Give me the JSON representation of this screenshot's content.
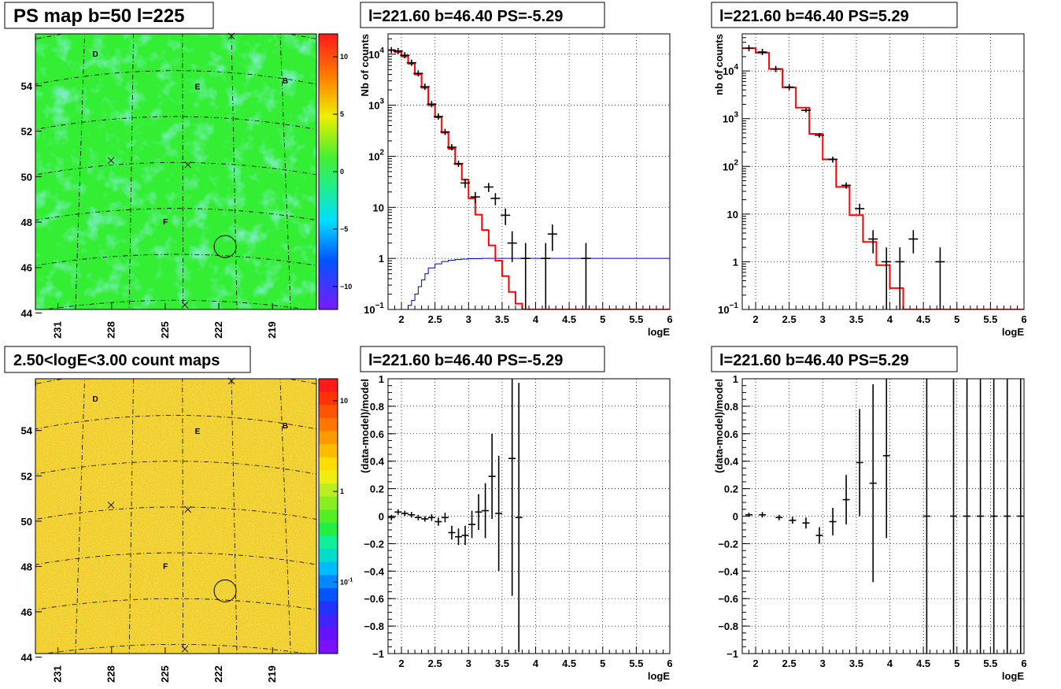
{
  "colors": {
    "data_points": "#000000",
    "model_histogram": "#ff0000",
    "efficiency_curve": "#0000cc",
    "grid": "#000000",
    "psmap_base": "#33ee33",
    "countmap_base": "#eedd33"
  },
  "chart_data": [
    {
      "id": "psmap",
      "type": "heatmap",
      "title": "PS map b=50 l=225",
      "colormap": "rainbow",
      "x_ticks": [
        "231",
        "228",
        "225",
        "222",
        "219"
      ],
      "y_ticks": [
        "54",
        "52",
        "50",
        "48",
        "46",
        "44"
      ],
      "x_axis_reversed": true,
      "colorbar": {
        "scale": "linear",
        "range": [
          -12,
          12
        ],
        "ticks": [
          "10",
          "5",
          "0",
          "−5",
          "−10"
        ]
      },
      "markers": [
        {
          "label": "D",
          "l": 229.3,
          "b": 54.8
        },
        {
          "label": "B",
          "l": 217.8,
          "b": 53.8
        },
        {
          "label": "E",
          "l": 223.1,
          "b": 53.2
        },
        {
          "label": "F",
          "l": 225.0,
          "b": 47.3
        }
      ],
      "crosses": [
        {
          "l": 221.0,
          "b": 55.6
        },
        {
          "l": 228.2,
          "b": 50.2
        },
        {
          "l": 223.7,
          "b": 49.9
        },
        {
          "l": 223.9,
          "b": 43.8
        }
      ],
      "circle": {
        "l": 221.6,
        "b": 46.4
      }
    },
    {
      "id": "spectrum_left",
      "type": "line",
      "title": "l=221.60 b=46.40 PS=-5.29",
      "xlabel": "logE",
      "ylabel": "Nb of counts",
      "xlim": [
        1.8,
        6
      ],
      "ylim": [
        0.1,
        25000
      ],
      "yscale": "log",
      "grid": true,
      "x_ticks": [
        "2",
        "2.5",
        "3",
        "3.5",
        "4",
        "4.5",
        "5",
        "5.5",
        "6"
      ],
      "y_ticks": [
        "10^4",
        "10^3",
        "10^2",
        "10",
        "1",
        "10^-1"
      ],
      "model_step": {
        "edges": [
          1.8,
          1.9,
          2.0,
          2.1,
          2.2,
          2.3,
          2.4,
          2.5,
          2.6,
          2.7,
          2.8,
          2.9,
          3.0,
          3.1,
          3.2,
          3.3,
          3.4,
          3.5,
          3.6,
          3.7,
          3.8,
          3.9,
          4.0,
          4.1,
          4.2,
          6.0
        ],
        "values": [
          12000,
          11000,
          9000,
          6500,
          4000,
          2200,
          1000,
          580,
          290,
          140,
          70,
          35,
          15,
          7.2,
          3.6,
          1.8,
          0.9,
          0.45,
          0.22,
          0.13,
          0.1,
          0.1,
          0.1,
          0.1,
          0.1
        ]
      },
      "efficiency_step": {
        "edges": [
          1.8,
          2.0,
          2.1,
          2.15,
          2.2,
          2.25,
          2.3,
          2.35,
          2.4,
          2.5,
          2.6,
          2.7,
          2.8,
          2.9,
          3.0,
          3.2,
          3.5,
          6.0
        ],
        "values": [
          0.1,
          0.1,
          0.12,
          0.15,
          0.2,
          0.28,
          0.38,
          0.5,
          0.65,
          0.78,
          0.87,
          0.92,
          0.95,
          0.97,
          0.99,
          1.0,
          1.0
        ]
      },
      "points": [
        {
          "x": 1.85,
          "y": 12000
        },
        {
          "x": 1.95,
          "y": 11500
        },
        {
          "x": 2.05,
          "y": 9500
        },
        {
          "x": 2.15,
          "y": 6800
        },
        {
          "x": 2.25,
          "y": 4200
        },
        {
          "x": 2.35,
          "y": 2300
        },
        {
          "x": 2.45,
          "y": 1050
        },
        {
          "x": 2.55,
          "y": 600
        },
        {
          "x": 2.65,
          "y": 300
        },
        {
          "x": 2.75,
          "y": 150
        },
        {
          "x": 2.85,
          "y": 72,
          "ylo": 62,
          "yhi": 82
        },
        {
          "x": 2.95,
          "y": 30,
          "ylo": 24,
          "yhi": 36
        },
        {
          "x": 3.1,
          "y": 16,
          "ylo": 12,
          "yhi": 20
        },
        {
          "x": 3.3,
          "y": 25,
          "ylo": 20,
          "yhi": 30
        },
        {
          "x": 3.4,
          "y": 15,
          "ylo": 11,
          "yhi": 19
        },
        {
          "x": 3.55,
          "y": 7,
          "ylo": 4.5,
          "yhi": 9.5
        },
        {
          "x": 3.65,
          "y": 2,
          "ylo": 0.85,
          "yhi": 3.4
        },
        {
          "x": 3.85,
          "y": 1,
          "ylo": 0.1,
          "yhi": 2.0
        },
        {
          "x": 4.15,
          "y": 1,
          "ylo": 0.1,
          "yhi": 2.0
        },
        {
          "x": 4.25,
          "y": 3,
          "ylo": 1.4,
          "yhi": 4.6
        },
        {
          "x": 4.75,
          "y": 1,
          "ylo": 0.1,
          "yhi": 2.0
        }
      ]
    },
    {
      "id": "spectrum_right",
      "type": "line",
      "title": "l=221.60 b=46.40 PS=5.29",
      "xlabel": "logE",
      "ylabel": "nb of counts",
      "xlim": [
        1.8,
        6
      ],
      "ylim": [
        0.1,
        60000
      ],
      "yscale": "log",
      "grid": true,
      "x_ticks": [
        "2",
        "2.5",
        "3",
        "3.5",
        "4",
        "4.5",
        "5",
        "5.5",
        "6"
      ],
      "y_ticks": [
        "10^4",
        "10^3",
        "10^2",
        "10",
        "1",
        "10^-1"
      ],
      "model_step": {
        "edges": [
          1.8,
          2.0,
          2.2,
          2.4,
          2.6,
          2.8,
          3.0,
          3.2,
          3.4,
          3.6,
          3.8,
          4.0,
          4.2,
          6.0
        ],
        "values": [
          30000,
          24000,
          11000,
          4500,
          1700,
          480,
          140,
          37,
          9.5,
          2.6,
          0.85,
          0.28,
          0.1
        ]
      },
      "points": [
        {
          "x": 1.9,
          "y": 30000
        },
        {
          "x": 2.1,
          "y": 25000
        },
        {
          "x": 2.3,
          "y": 11000
        },
        {
          "x": 2.5,
          "y": 4600
        },
        {
          "x": 2.75,
          "y": 1500,
          "ylo": 1350,
          "yhi": 1650
        },
        {
          "x": 2.95,
          "y": 450,
          "ylo": 400,
          "yhi": 500
        },
        {
          "x": 3.15,
          "y": 140,
          "ylo": 120,
          "yhi": 160
        },
        {
          "x": 3.35,
          "y": 40,
          "ylo": 34,
          "yhi": 46
        },
        {
          "x": 3.55,
          "y": 13,
          "ylo": 10,
          "yhi": 16.5
        },
        {
          "x": 3.75,
          "y": 3,
          "ylo": 1.5,
          "yhi": 4.6
        },
        {
          "x": 3.95,
          "y": 1,
          "ylo": 0.1,
          "yhi": 2.0
        },
        {
          "x": 4.15,
          "y": 1,
          "ylo": 0.1,
          "yhi": 2.0
        },
        {
          "x": 4.35,
          "y": 3,
          "ylo": 1.5,
          "yhi": 4.6
        },
        {
          "x": 4.75,
          "y": 1,
          "ylo": 0.1,
          "yhi": 2.0
        }
      ]
    },
    {
      "id": "countmap",
      "type": "heatmap",
      "title": "2.50<logE<3.00 count maps",
      "colormap": "rainbow",
      "x_ticks": [
        "231",
        "228",
        "225",
        "222",
        "219"
      ],
      "y_ticks": [
        "54",
        "52",
        "50",
        "48",
        "46",
        "44"
      ],
      "x_axis_reversed": true,
      "colorbar": {
        "scale": "log",
        "ticks": [
          "10",
          "1",
          "10^-1"
        ]
      },
      "markers": [
        {
          "label": "D",
          "l": 229.3,
          "b": 54.8
        },
        {
          "label": "B",
          "l": 217.8,
          "b": 53.8
        },
        {
          "label": "E",
          "l": 223.1,
          "b": 53.2
        },
        {
          "label": "F",
          "l": 225.0,
          "b": 47.3
        }
      ],
      "crosses": [
        {
          "l": 221.0,
          "b": 55.6
        },
        {
          "l": 228.2,
          "b": 50.2
        },
        {
          "l": 223.7,
          "b": 49.9
        },
        {
          "l": 223.9,
          "b": 43.8
        }
      ],
      "circle": {
        "l": 221.6,
        "b": 46.4
      }
    },
    {
      "id": "residual_left",
      "type": "scatter",
      "title": "l=221.60 b=46.40 PS=-5.29",
      "xlabel": "logE",
      "ylabel": "(data-model)/model",
      "xlim": [
        1.8,
        6
      ],
      "ylim": [
        -1,
        1
      ],
      "grid": true,
      "x_ticks": [
        "2",
        "2.5",
        "3",
        "3.5",
        "4",
        "4.5",
        "5",
        "5.5",
        "6"
      ],
      "y_ticks": [
        "1",
        "0.8",
        "0.6",
        "0.4",
        "0.2",
        "0",
        "−0.2",
        "−0.4",
        "−0.6",
        "−0.8",
        "−1"
      ],
      "points": [
        {
          "x": 1.85,
          "y": -0.01,
          "e": 0.02
        },
        {
          "x": 1.95,
          "y": 0.03,
          "e": 0.02
        },
        {
          "x": 2.05,
          "y": 0.02,
          "e": 0.02
        },
        {
          "x": 2.15,
          "y": 0.01,
          "e": 0.02
        },
        {
          "x": 2.25,
          "y": -0.01,
          "e": 0.02
        },
        {
          "x": 2.35,
          "y": -0.02,
          "e": 0.02
        },
        {
          "x": 2.45,
          "y": -0.01,
          "e": 0.025
        },
        {
          "x": 2.55,
          "y": -0.04,
          "e": 0.03
        },
        {
          "x": 2.65,
          "y": -0.01,
          "e": 0.035
        },
        {
          "x": 2.75,
          "y": -0.12,
          "e": 0.05
        },
        {
          "x": 2.85,
          "y": -0.15,
          "e": 0.06
        },
        {
          "x": 2.95,
          "y": -0.14,
          "e": 0.07
        },
        {
          "x": 3.05,
          "y": -0.06,
          "e": 0.1
        },
        {
          "x": 3.15,
          "y": 0.03,
          "e": 0.13
        },
        {
          "x": 3.25,
          "y": 0.04,
          "e": 0.2
        },
        {
          "x": 3.35,
          "y": 0.29,
          "e": 0.31
        },
        {
          "x": 3.45,
          "y": 0.02,
          "e": 0.42
        },
        {
          "x": 3.65,
          "y": 0.42,
          "e": 1.0
        },
        {
          "x": 3.75,
          "y": -0.01,
          "e": 0.98
        }
      ]
    },
    {
      "id": "residual_right",
      "type": "scatter",
      "title": "l=221.60 b=46.40 PS=5.29",
      "xlabel": "logE",
      "ylabel": "(data-model)/model",
      "xlim": [
        1.8,
        6
      ],
      "ylim": [
        -1,
        1
      ],
      "grid": true,
      "x_ticks": [
        "2",
        "2.5",
        "3",
        "3.5",
        "4",
        "4.5",
        "5",
        "5.5",
        "6"
      ],
      "y_ticks": [
        "1",
        "0.8",
        "0.6",
        "0.4",
        "0.2",
        "0",
        "−0.2",
        "−0.4",
        "−0.6",
        "−0.8",
        "−1"
      ],
      "points": [
        {
          "x": 1.9,
          "y": 0.01,
          "e": 0.015
        },
        {
          "x": 2.1,
          "y": 0.01,
          "e": 0.02
        },
        {
          "x": 2.35,
          "y": -0.01,
          "e": 0.02
        },
        {
          "x": 2.55,
          "y": -0.03,
          "e": 0.025
        },
        {
          "x": 2.75,
          "y": -0.05,
          "e": 0.04
        },
        {
          "x": 2.95,
          "y": -0.14,
          "e": 0.06
        },
        {
          "x": 3.15,
          "y": -0.04,
          "e": 0.1
        },
        {
          "x": 3.35,
          "y": 0.12,
          "e": 0.18
        },
        {
          "x": 3.55,
          "y": 0.39,
          "e": 0.39
        },
        {
          "x": 3.75,
          "y": 0.24,
          "e": 0.72
        },
        {
          "x": 3.95,
          "y": 0.44,
          "e": 0.6
        },
        {
          "x": 4.55,
          "y": 0,
          "e": 1.2
        },
        {
          "x": 4.95,
          "y": 0,
          "e": 1.2
        },
        {
          "x": 5.15,
          "y": 0,
          "e": 1.2
        },
        {
          "x": 5.35,
          "y": 0,
          "e": 1.2
        },
        {
          "x": 5.55,
          "y": 0,
          "e": 1.2
        },
        {
          "x": 5.75,
          "y": 0,
          "e": 1.2
        },
        {
          "x": 5.95,
          "y": 0,
          "e": 1.2
        }
      ]
    }
  ]
}
